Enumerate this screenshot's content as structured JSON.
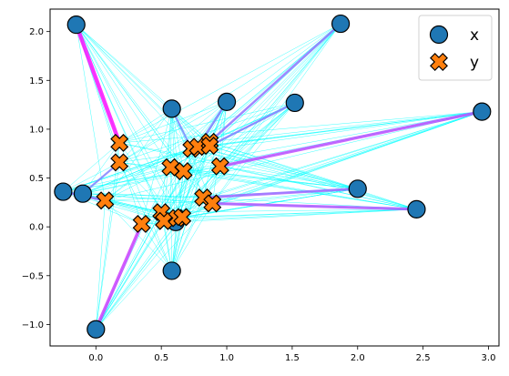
{
  "chart_data": {
    "type": "scatter",
    "title": "",
    "xlabel": "",
    "ylabel": "",
    "xlim": [
      -0.35,
      3.08
    ],
    "ylim": [
      -1.22,
      2.23
    ],
    "x_ticks": [
      0.0,
      0.5,
      1.0,
      1.5,
      2.0,
      2.5,
      3.0
    ],
    "x_tick_labels": [
      "0.0",
      "0.5",
      "1.0",
      "1.5",
      "2.0",
      "2.5",
      "3.0"
    ],
    "y_ticks": [
      -1.0,
      -0.5,
      0.0,
      0.5,
      1.0,
      1.5,
      2.0
    ],
    "y_tick_labels": [
      "−1.0",
      "−0.5",
      "0.0",
      "0.5",
      "1.0",
      "1.5",
      "2.0"
    ],
    "grid": false,
    "legend_position": "top-right",
    "series": [
      {
        "name": "x",
        "marker": "circle",
        "color": "#1f77b4",
        "points": [
          [
            -0.15,
            2.07
          ],
          [
            1.87,
            2.08
          ],
          [
            0.58,
            1.21
          ],
          [
            1.0,
            1.28
          ],
          [
            1.52,
            1.27
          ],
          [
            2.95,
            1.18
          ],
          [
            -0.25,
            0.36
          ],
          [
            -0.1,
            0.34
          ],
          [
            2.0,
            0.39
          ],
          [
            2.45,
            0.18
          ],
          [
            0.61,
            0.05
          ],
          [
            0.58,
            -0.45
          ],
          [
            0.0,
            -1.05
          ]
        ]
      },
      {
        "name": "y",
        "marker": "x-filled",
        "color": "#ff7f0e",
        "points": [
          [
            0.18,
            0.86
          ],
          [
            0.18,
            0.66
          ],
          [
            0.07,
            0.27
          ],
          [
            0.35,
            0.03
          ],
          [
            0.5,
            0.15
          ],
          [
            0.52,
            0.06
          ],
          [
            0.62,
            0.09
          ],
          [
            0.66,
            0.1
          ],
          [
            0.57,
            0.61
          ],
          [
            0.67,
            0.57
          ],
          [
            0.73,
            0.8
          ],
          [
            0.78,
            0.82
          ],
          [
            0.87,
            0.87
          ],
          [
            0.87,
            0.83
          ],
          [
            0.95,
            0.62
          ],
          [
            0.82,
            0.3
          ],
          [
            0.89,
            0.24
          ]
        ]
      }
    ],
    "connections": {
      "colormap": "cool",
      "color_low": "#00ffff",
      "color_high": "#ff00ff",
      "strong": [
        {
          "x": 0,
          "y": 0,
          "w": 1.0
        },
        {
          "x": 12,
          "y": 3,
          "w": 0.7
        },
        {
          "x": 5,
          "y": 14,
          "w": 0.6
        },
        {
          "x": 9,
          "y": 16,
          "w": 0.55
        },
        {
          "x": 8,
          "y": 15,
          "w": 0.45
        },
        {
          "x": 6,
          "y": 2,
          "w": 0.4
        },
        {
          "x": 1,
          "y": 12,
          "w": 0.35
        },
        {
          "x": 3,
          "y": 11,
          "w": 0.3
        },
        {
          "x": 4,
          "y": 13,
          "w": 0.3
        },
        {
          "x": 7,
          "y": 1,
          "w": 0.25
        },
        {
          "x": 10,
          "y": 7,
          "w": 0.25
        },
        {
          "x": 2,
          "y": 10,
          "w": 0.2
        }
      ]
    }
  }
}
